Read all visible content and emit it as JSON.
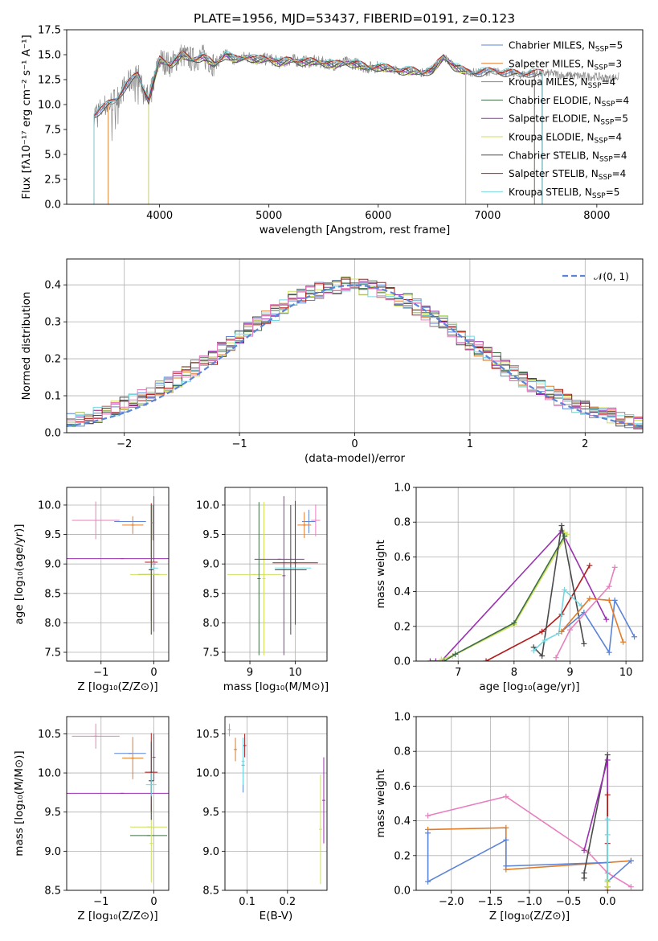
{
  "figure": {
    "title": "PLATE=1956, MJD=53437, FIBERID=0191, z=0.123",
    "colors": {
      "blue": "#5b84d6",
      "orange": "#e07b28",
      "gray": "#888888",
      "green": "#3f6e45",
      "purple": "#9a2fb0",
      "lime": "#cde05c",
      "black": "#4a4a4a",
      "red": "#b31b1b",
      "cyan": "#76d7e0",
      "pink": "#e87fbe",
      "gauss": "#5b84d6"
    }
  },
  "chart_data": [
    {
      "id": "spectrum",
      "type": "line",
      "title": "PLATE=1956, MJD=53437, FIBERID=0191, z=0.123",
      "xlabel": "wavelength [Angstrom, rest frame]",
      "ylabel": "Flux [fλ10⁻¹⁷ erg cm⁻² s⁻¹ A⁻¹]",
      "xlim": [
        3150,
        8420
      ],
      "ylim": [
        0,
        17.5
      ],
      "xticks": [
        4000,
        5000,
        6000,
        7000,
        8000
      ],
      "yticks": [
        0.0,
        2.5,
        5.0,
        7.5,
        10.0,
        12.5,
        15.0,
        17.5
      ],
      "grid": false,
      "legend_position": "top-right",
      "observed": {
        "x": [
          3400,
          3500,
          3600,
          3700,
          3800,
          3900,
          4000,
          4100,
          4200,
          4300,
          4400,
          4500,
          4600,
          4700,
          4800,
          4900,
          5000,
          5100,
          5200,
          5300,
          5400,
          5500,
          5600,
          5700,
          5800,
          5900,
          6000,
          6100,
          6200,
          6300,
          6400,
          6500,
          6600,
          6700,
          6800,
          6900,
          7000,
          7100,
          7200,
          7300,
          7400,
          7500,
          7600,
          7700,
          7800,
          7900,
          8000,
          8100,
          8200
        ],
        "y": [
          9.0,
          9.8,
          10.5,
          12.0,
          13.0,
          10.5,
          14.5,
          14.0,
          15.0,
          14.5,
          14.8,
          14.0,
          15.0,
          14.5,
          14.8,
          14.5,
          14.6,
          14.2,
          14.5,
          14.3,
          14.3,
          14.2,
          14.0,
          14.2,
          14.1,
          13.7,
          13.8,
          13.6,
          13.4,
          13.4,
          13.2,
          13.5,
          14.8,
          13.8,
          13.3,
          13.2,
          13.3,
          13.3,
          13.2,
          13.0,
          13.2,
          13.1,
          13.1,
          12.9,
          12.9,
          12.8,
          12.8,
          12.6,
          12.8
        ]
      },
      "series": [
        {
          "name": "Chabrier MILES, N_SSP=5",
          "color": "blue",
          "start": 3400,
          "end": 7430,
          "offset": 0.05
        },
        {
          "name": "Salpeter MILES, N_SSP=3",
          "color": "orange",
          "start": 3530,
          "end": 7430,
          "offset": 0.1
        },
        {
          "name": "Kroupa MILES, N_SSP=4",
          "color": "gray",
          "start": 3400,
          "end": 7430,
          "offset": 0.0
        },
        {
          "name": "Chabrier ELODIE, N_SSP=4",
          "color": "green",
          "start": 3900,
          "end": 6800,
          "offset": -0.05
        },
        {
          "name": "Salpeter ELODIE, N_SSP=5",
          "color": "purple",
          "start": 3900,
          "end": 6800,
          "offset": -0.1
        },
        {
          "name": "Kroupa ELODIE, N_SSP=4",
          "color": "lime",
          "start": 3900,
          "end": 6800,
          "offset": -0.15
        },
        {
          "name": "Chabrier STELIB, N_SSP=4",
          "color": "black",
          "start": 3400,
          "end": 7500,
          "offset": -0.2
        },
        {
          "name": "Salpeter STELIB, N_SSP=4",
          "color": "red",
          "start": 3400,
          "end": 7500,
          "offset": 0.15
        },
        {
          "name": "Kroupa STELIB, N_SSP=5",
          "color": "cyan",
          "start": 3400,
          "end": 7500,
          "offset": 0.2
        }
      ],
      "legend": [
        {
          "text": "Chabrier MILES, N",
          "sub": "SSP",
          "tail": "=5",
          "color": "blue"
        },
        {
          "text": "Salpeter MILES, N",
          "sub": "SSP",
          "tail": "=3",
          "color": "orange"
        },
        {
          "text": "Kroupa MILES, N",
          "sub": "SSP",
          "tail": "=4",
          "color": "gray"
        },
        {
          "text": "Chabrier ELODIE, N",
          "sub": "SSP",
          "tail": "=4",
          "color": "green"
        },
        {
          "text": "Salpeter ELODIE, N",
          "sub": "SSP",
          "tail": "=5",
          "color": "purple"
        },
        {
          "text": "Kroupa ELODIE, N",
          "sub": "SSP",
          "tail": "=4",
          "color": "lime"
        },
        {
          "text": "Chabrier STELIB, N",
          "sub": "SSP",
          "tail": "=4",
          "color": "black"
        },
        {
          "text": "Salpeter STELIB, N",
          "sub": "SSP",
          "tail": "=4",
          "color": "red"
        },
        {
          "text": "Kroupa STELIB, N",
          "sub": "SSP",
          "tail": "=5",
          "color": "cyan"
        }
      ]
    },
    {
      "id": "residuals",
      "type": "line",
      "xlabel": "(data-model)/error",
      "ylabel": "Normed distribution",
      "xlim": [
        -2.5,
        2.5
      ],
      "ylim": [
        0,
        0.47
      ],
      "xticks": [
        -2,
        -1,
        0,
        1,
        2
      ],
      "yticks": [
        0.0,
        0.1,
        0.2,
        0.3,
        0.4
      ],
      "grid": true,
      "legend_position": "top-right",
      "legend_label": "𝒩(0, 1)",
      "bin_width": 0.1,
      "profile": [
        0.03,
        0.035,
        0.04,
        0.05,
        0.06,
        0.065,
        0.075,
        0.085,
        0.095,
        0.105,
        0.12,
        0.13,
        0.145,
        0.16,
        0.175,
        0.19,
        0.205,
        0.225,
        0.24,
        0.26,
        0.28,
        0.295,
        0.31,
        0.325,
        0.34,
        0.36,
        0.37,
        0.38,
        0.385,
        0.39,
        0.395,
        0.4,
        0.4,
        0.395,
        0.39,
        0.385,
        0.375,
        0.365,
        0.355,
        0.34,
        0.325,
        0.31,
        0.295,
        0.275,
        0.26,
        0.245,
        0.225,
        0.21,
        0.195,
        0.175,
        0.16,
        0.145,
        0.13,
        0.12,
        0.105,
        0.095,
        0.085,
        0.075,
        0.065,
        0.055,
        0.05,
        0.045,
        0.04,
        0.035,
        0.03
      ],
      "series": [
        {
          "color": "blue"
        },
        {
          "color": "orange"
        },
        {
          "color": "gray"
        },
        {
          "color": "green"
        },
        {
          "color": "purple"
        },
        {
          "color": "lime"
        },
        {
          "color": "black"
        },
        {
          "color": "red"
        },
        {
          "color": "cyan"
        },
        {
          "color": "pink"
        }
      ]
    },
    {
      "id": "age-vs-Z",
      "type": "scatter",
      "xlabel": "Z [log₁₀(Z/Z⊙)]",
      "ylabel": "age  [log₁₀(age/yr)]",
      "xlim": [
        -1.65,
        0.28
      ],
      "ylim": [
        7.35,
        10.3
      ],
      "xticks": [
        -1,
        0
      ],
      "yticks": [
        7.5,
        8.0,
        8.5,
        9.0,
        9.5,
        10.0
      ],
      "grid": true,
      "points": [
        {
          "color": "pink",
          "x": -1.1,
          "xerr": 0.45,
          "y": 9.74,
          "yerr": 0.32
        },
        {
          "color": "blue",
          "x": -0.45,
          "xerr": 0.3,
          "y": 9.72,
          "yerr": 0.0
        },
        {
          "color": "orange",
          "x": -0.4,
          "xerr": 0.2,
          "y": 9.66,
          "yerr": 0.15
        },
        {
          "color": "purple",
          "x": -0.6,
          "xerr": 1.1,
          "y": 9.09,
          "yerr": 0.0
        },
        {
          "color": "purple",
          "x": 0.0,
          "xerr": 0.0,
          "y": 9.0,
          "yerr": 1.15
        },
        {
          "color": "red",
          "x": -0.05,
          "xerr": 0.12,
          "y": 9.03,
          "yerr": 1.0
        },
        {
          "color": "green",
          "x": -0.1,
          "xerr": 0.2,
          "y": 8.82,
          "yerr": 0.0
        },
        {
          "color": "lime",
          "x": -0.1,
          "xerr": 0.35,
          "y": 8.82,
          "yerr": 0.0
        },
        {
          "color": "lime",
          "x": -0.05,
          "xerr": 0.0,
          "y": 8.9,
          "yerr": 1.1
        },
        {
          "color": "black",
          "x": -0.05,
          "xerr": 0.05,
          "y": 8.9,
          "yerr": 1.1
        },
        {
          "color": "cyan",
          "x": 0.0,
          "xerr": 0.08,
          "y": 8.93,
          "yerr": 0.1
        },
        {
          "color": "gray",
          "x": -0.02,
          "xerr": 0.0,
          "y": 9.7,
          "yerr": 0.3
        }
      ]
    },
    {
      "id": "age-vs-mass",
      "type": "scatter",
      "xlabel": "mass [log₁₀(M/M⊙)]",
      "ylabel": "",
      "xlim": [
        8.45,
        10.7
      ],
      "ylim": [
        7.35,
        10.3
      ],
      "xticks": [
        9,
        10
      ],
      "yticks": [
        7.5,
        8.0,
        8.5,
        9.0,
        9.5,
        10.0
      ],
      "grid": true,
      "points": [
        {
          "color": "lime",
          "x": 9.1,
          "xerr": 0.6,
          "y": 8.82,
          "yerr": 0.0
        },
        {
          "color": "green",
          "x": 9.2,
          "xerr": 0.0,
          "y": 8.75,
          "yerr": 1.3
        },
        {
          "color": "lime",
          "x": 9.31,
          "xerr": 0.0,
          "y": 8.75,
          "yerr": 1.3
        },
        {
          "color": "purple",
          "x": 9.75,
          "xerr": 0.0,
          "y": 8.8,
          "yerr": 1.35
        },
        {
          "color": "purple",
          "x": 9.65,
          "xerr": 0.55,
          "y": 9.08,
          "yerr": 0.0
        },
        {
          "color": "red",
          "x": 10.0,
          "xerr": 0.5,
          "y": 9.02,
          "yerr": 1.05
        },
        {
          "color": "black",
          "x": 9.9,
          "xerr": 0.35,
          "y": 8.9,
          "yerr": 1.1
        },
        {
          "color": "cyan",
          "x": 9.95,
          "xerr": 0.4,
          "y": 8.93,
          "yerr": 0.0
        },
        {
          "color": "blue",
          "x": 10.3,
          "xerr": 0.15,
          "y": 9.72,
          "yerr": 0.2
        },
        {
          "color": "orange",
          "x": 10.2,
          "xerr": 0.15,
          "y": 9.66,
          "yerr": 0.22
        },
        {
          "color": "pink",
          "x": 10.45,
          "xerr": 0.1,
          "y": 9.74,
          "yerr": 0.27
        }
      ]
    },
    {
      "id": "weight-vs-age",
      "type": "line",
      "xlabel": "age  [log₁₀(age/yr)]",
      "ylabel": "mass weight",
      "xlim": [
        6.25,
        10.3
      ],
      "ylim": [
        0,
        1.0
      ],
      "xticks": [
        7,
        8,
        9,
        10
      ],
      "yticks": [
        0.0,
        0.2,
        0.4,
        0.6,
        0.8,
        1.0
      ],
      "grid": true,
      "series": [
        {
          "color": "purple",
          "x": [
            6.5,
            6.6,
            6.7,
            8.85,
            9.65
          ],
          "y": [
            0.0,
            0.0,
            0.0,
            0.75,
            0.24
          ]
        },
        {
          "color": "lime",
          "x": [
            6.7,
            6.9,
            8.0,
            8.95,
            8.9
          ],
          "y": [
            0.01,
            0.03,
            0.21,
            0.73,
            0.74
          ]
        },
        {
          "color": "green",
          "x": [
            6.75,
            6.95,
            8.0,
            8.9
          ],
          "y": [
            0.0,
            0.04,
            0.22,
            0.72
          ]
        },
        {
          "color": "red",
          "x": [
            7.5,
            8.5,
            8.85,
            9.35
          ],
          "y": [
            0.0,
            0.17,
            0.27,
            0.55
          ]
        },
        {
          "color": "black",
          "x": [
            8.35,
            8.5,
            8.85,
            9.25
          ],
          "y": [
            0.08,
            0.03,
            0.78,
            0.1
          ]
        },
        {
          "color": "cyan",
          "x": [
            8.35,
            8.55,
            8.8,
            8.9,
            9.2
          ],
          "y": [
            0.06,
            0.12,
            0.16,
            0.41,
            0.32
          ]
        },
        {
          "color": "blue",
          "x": [
            8.85,
            9.25,
            9.7,
            9.8,
            10.15
          ],
          "y": [
            0.17,
            0.28,
            0.05,
            0.35,
            0.14
          ]
        },
        {
          "color": "orange",
          "x": [
            8.85,
            9.35,
            9.7,
            9.95
          ],
          "y": [
            0.17,
            0.36,
            0.35,
            0.11
          ]
        },
        {
          "color": "pink",
          "x": [
            8.75,
            9.0,
            9.7,
            9.8
          ],
          "y": [
            0.02,
            0.18,
            0.43,
            0.54
          ]
        }
      ]
    },
    {
      "id": "mass-vs-Z",
      "type": "scatter",
      "xlabel": "Z [log₁₀(Z/Z⊙)]",
      "ylabel": "mass [log₁₀(M/M⊙)]",
      "xlim": [
        -1.65,
        0.28
      ],
      "ylim": [
        8.5,
        10.72
      ],
      "xticks": [
        -1,
        0
      ],
      "yticks": [
        8.5,
        9.0,
        9.5,
        10.0,
        10.5
      ],
      "grid": true,
      "points": [
        {
          "color": "pink",
          "x": -1.1,
          "xerr": 0.45,
          "y": 10.47,
          "yerr": 0.16
        },
        {
          "color": "blue",
          "x": -0.45,
          "xerr": 0.3,
          "y": 10.25,
          "yerr": 0.0
        },
        {
          "color": "orange",
          "x": -0.4,
          "xerr": 0.2,
          "y": 10.19,
          "yerr": 0.27
        },
        {
          "color": "purple",
          "x": -0.6,
          "xerr": 1.1,
          "y": 9.74,
          "yerr": 0.0
        },
        {
          "color": "lime",
          "x": -0.1,
          "xerr": 0.35,
          "y": 9.31,
          "yerr": 0.0
        },
        {
          "color": "green",
          "x": -0.1,
          "xerr": 0.35,
          "y": 9.2,
          "yerr": 0.0
        },
        {
          "color": "lime",
          "x": -0.05,
          "xerr": 0.0,
          "y": 9.1,
          "yerr": 0.5
        },
        {
          "color": "red",
          "x": -0.05,
          "xerr": 0.12,
          "y": 10.01,
          "yerr": 0.5
        },
        {
          "color": "black",
          "x": -0.05,
          "xerr": 0.05,
          "y": 9.9,
          "yerr": 0.5
        },
        {
          "color": "cyan",
          "x": -0.05,
          "xerr": 0.1,
          "y": 9.85,
          "yerr": 0.15
        },
        {
          "color": "purple",
          "x": 0.0,
          "xerr": 0.0,
          "y": 10.2,
          "yerr": 0.3
        }
      ]
    },
    {
      "id": "mass-vs-EBV",
      "type": "scatter",
      "xlabel": "E(B-V)",
      "ylabel": "",
      "xlim": [
        0.045,
        0.298
      ],
      "ylim": [
        8.5,
        10.72
      ],
      "xticks": [
        0.1,
        0.2
      ],
      "yticks": [
        8.5,
        9.0,
        9.5,
        10.0,
        10.5
      ],
      "grid": true,
      "points": [
        {
          "color": "pink",
          "x": 0.056,
          "xerr": 0.0,
          "y": 10.55,
          "yerr": 0.08
        },
        {
          "color": "orange",
          "x": 0.071,
          "xerr": 0.0,
          "y": 10.3,
          "yerr": 0.15
        },
        {
          "color": "red",
          "x": 0.094,
          "xerr": 0.0,
          "y": 10.35,
          "yerr": 0.15
        },
        {
          "color": "blue",
          "x": 0.09,
          "xerr": 0.0,
          "y": 10.1,
          "yerr": 0.35
        },
        {
          "color": "cyan",
          "x": 0.09,
          "xerr": 0.0,
          "y": 10.15,
          "yerr": 0.3
        },
        {
          "color": "lime",
          "x": 0.282,
          "xerr": 0.0,
          "y": 9.28,
          "yerr": 0.7
        },
        {
          "color": "purple",
          "x": 0.29,
          "xerr": 0.0,
          "y": 9.65,
          "yerr": 0.55
        }
      ]
    },
    {
      "id": "weight-vs-Z",
      "type": "line",
      "xlabel": "Z [log₁₀(Z/Z⊙)]",
      "ylabel": "mass weight",
      "xlim": [
        -2.45,
        0.45
      ],
      "ylim": [
        0,
        1.0
      ],
      "xticks": [
        -2.0,
        -1.5,
        -1.0,
        -0.5,
        0.0
      ],
      "yticks": [
        0.0,
        0.2,
        0.4,
        0.6,
        0.8,
        1.0
      ],
      "grid": true,
      "series": [
        {
          "color": "pink",
          "x": [
            -2.3,
            -1.3,
            -0.25,
            0.0,
            0.3
          ],
          "y": [
            0.43,
            0.54,
            0.22,
            0.1,
            0.02
          ]
        },
        {
          "color": "orange",
          "x": [
            -2.3,
            -1.3,
            -1.3,
            0.0,
            0.3
          ],
          "y": [
            0.35,
            0.36,
            0.12,
            0.16,
            0.17
          ]
        },
        {
          "color": "blue",
          "x": [
            -2.3,
            -2.3,
            -1.3,
            -1.3,
            0.0,
            0.0,
            0.3
          ],
          "y": [
            0.33,
            0.05,
            0.29,
            0.14,
            0.16,
            0.05,
            0.17
          ]
        },
        {
          "color": "black",
          "x": [
            -0.3,
            -0.3,
            0.0,
            0.0
          ],
          "y": [
            0.07,
            0.1,
            0.78,
            0.02
          ]
        },
        {
          "color": "purple",
          "x": [
            -0.3,
            0.0,
            0.0
          ],
          "y": [
            0.23,
            0.75,
            0.02
          ]
        },
        {
          "color": "red",
          "x": [
            0.0,
            0.0,
            0.0
          ],
          "y": [
            0.0,
            0.55,
            0.27
          ]
        },
        {
          "color": "cyan",
          "x": [
            0.0,
            0.0,
            0.0
          ],
          "y": [
            0.06,
            0.41,
            0.32
          ]
        },
        {
          "color": "lime",
          "x": [
            0.0,
            0.0
          ],
          "y": [
            0.02,
            0.05
          ]
        }
      ]
    }
  ]
}
